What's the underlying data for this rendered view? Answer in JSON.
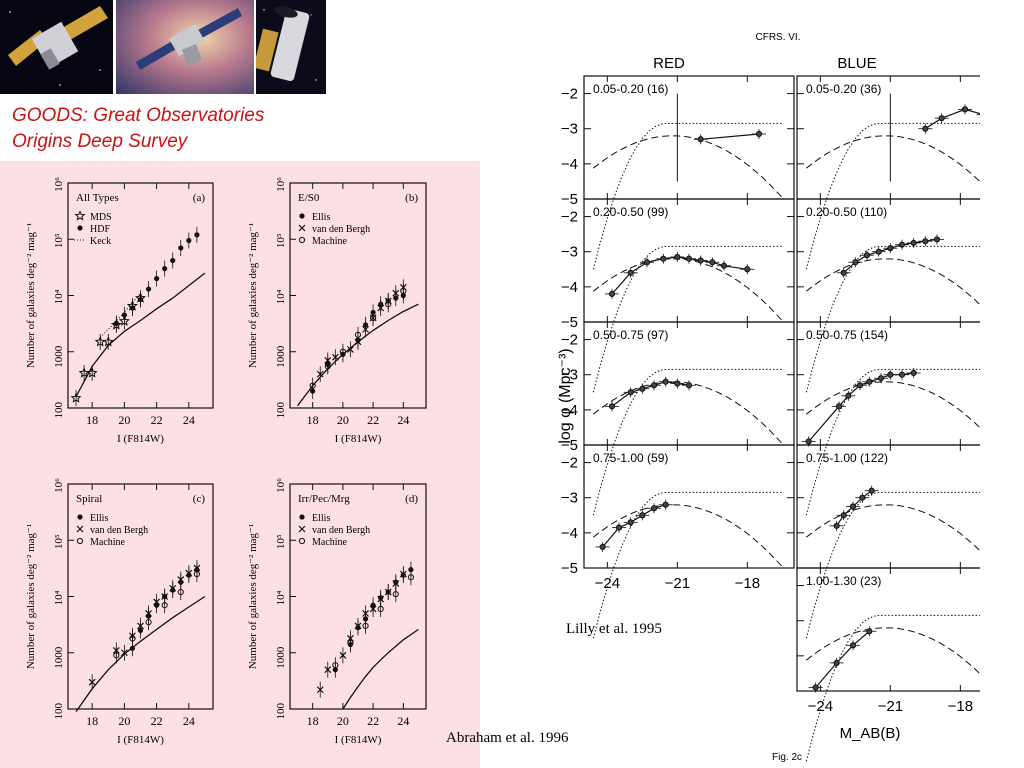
{
  "header": {
    "images": [
      {
        "icon": "chandra-satellite-image"
      },
      {
        "icon": "spitzer-satellite-image"
      },
      {
        "icon": "hubble-telescope-image"
      }
    ],
    "title_line1": "GOODS: Great Observatories",
    "title_line2": "Origins Deep Survey"
  },
  "citations": {
    "abraham": "Abraham et al. 1996",
    "lilly": "Lilly et al. 1995"
  },
  "chart_data": [
    {
      "type": "scatter",
      "source_figure": "number counts",
      "panels": [
        {
          "id": "a",
          "name": "All Types",
          "tag": "(a)",
          "legend": [
            {
              "marker": "star",
              "label": "MDS"
            },
            {
              "marker": "filled-circle",
              "label": "HDF"
            },
            {
              "marker": "dots",
              "label": "Keck"
            }
          ],
          "series": [
            {
              "name": "MDS",
              "marker": "star",
              "x": [
                17.0,
                17.5,
                18.0,
                18.5,
                19.0,
                19.5,
                20.0,
                20.5,
                21.0
              ],
              "y": [
                150,
                420,
                420,
                1500,
                1500,
                3000,
                3500,
                6500,
                9000
              ]
            },
            {
              "name": "HDF",
              "marker": "filled-circle",
              "x": [
                19.5,
                20.0,
                20.5,
                21.0,
                21.5,
                22.0,
                22.5,
                23.0,
                23.5,
                24.0,
                24.5
              ],
              "y": [
                3200,
                4500,
                6000,
                8500,
                13000,
                20000,
                30000,
                42000,
                70000,
                95000,
                120000
              ]
            },
            {
              "name": "Keck",
              "marker": "dots",
              "x": [
                18.5,
                19.0,
                19.5,
                20.0,
                20.5,
                21.0
              ],
              "y": [
                1800,
                2500,
                3500,
                5000,
                7500,
                11000
              ]
            }
          ],
          "curve": {
            "x": [
              17,
              18,
              19,
              20,
              21,
              22,
              23,
              24,
              25
            ],
            "y": [
              160,
              550,
              1300,
              2300,
              3600,
              5800,
              9000,
              15000,
              25000
            ]
          }
        },
        {
          "id": "b",
          "name": "E/S0",
          "tag": "(b)",
          "legend": [
            {
              "marker": "filled-circle",
              "label": "Ellis"
            },
            {
              "marker": "cross",
              "label": "van den Bergh"
            },
            {
              "marker": "open-circle",
              "label": "Machine"
            }
          ],
          "series": [
            {
              "name": "Ellis",
              "marker": "filled-circle",
              "x": [
                18.0,
                19.0,
                20.0,
                21.0,
                21.5,
                22.0,
                22.5,
                23.0,
                23.5,
                24.0
              ],
              "y": [
                200,
                600,
                900,
                1600,
                3000,
                5000,
                7000,
                8000,
                9000,
                10000
              ]
            },
            {
              "name": "van den Bergh",
              "marker": "cross",
              "x": [
                18.5,
                19.0,
                19.5,
                20.5,
                21.0,
                21.5,
                22.0,
                22.5,
                23.0,
                23.5,
                24.0
              ],
              "y": [
                400,
                700,
                800,
                1100,
                1500,
                2500,
                4000,
                6000,
                8000,
                11000,
                14000
              ]
            },
            {
              "name": "Machine",
              "marker": "open-circle",
              "x": [
                18.0,
                19.0,
                20.0,
                21.0,
                22.0,
                23.0,
                24.0
              ],
              "y": [
                250,
                550,
                1000,
                2000,
                4000,
                7000,
                12000
              ]
            }
          ],
          "curve": {
            "x": [
              17,
              18,
              19,
              20,
              21,
              22,
              23,
              24,
              25
            ],
            "y": [
              110,
              250,
              500,
              900,
              1500,
              2400,
              3600,
              5200,
              7000
            ]
          }
        },
        {
          "id": "c",
          "name": "Spiral",
          "tag": "(c)",
          "legend": [
            {
              "marker": "filled-circle",
              "label": "Ellis"
            },
            {
              "marker": "cross",
              "label": "van den Bergh"
            },
            {
              "marker": "open-circle",
              "label": "Machine"
            }
          ],
          "series": [
            {
              "name": "Ellis",
              "marker": "filled-circle",
              "x": [
                20.5,
                21.0,
                21.5,
                22.0,
                22.5,
                23.0,
                23.5,
                24.0,
                24.5
              ],
              "y": [
                1200,
                2500,
                4500,
                7000,
                10000,
                13000,
                18000,
                24000,
                30000
              ]
            },
            {
              "name": "van den Bergh",
              "marker": "cross",
              "x": [
                18.0,
                19.5,
                20.0,
                20.5,
                21.0,
                21.5,
                22.0,
                22.5,
                23.0,
                23.5,
                24.0,
                24.5
              ],
              "y": [
                300,
                1100,
                1000,
                2000,
                3000,
                5000,
                8000,
                10000,
                14000,
                20000,
                26000,
                32000
              ]
            },
            {
              "name": "Machine",
              "marker": "open-circle",
              "x": [
                19.5,
                20.5,
                21.5,
                22.5,
                23.5,
                24.5
              ],
              "y": [
                900,
                1800,
                3500,
                7000,
                12000,
                25000
              ]
            }
          ],
          "curve": {
            "x": [
              17,
              18,
              19,
              20,
              21,
              22,
              23,
              24,
              25
            ],
            "y": [
              90,
              230,
              500,
              950,
              1600,
              2600,
              4200,
              6500,
              10000
            ]
          }
        },
        {
          "id": "d",
          "name": "Irr/Pec/Mrg",
          "tag": "(d)",
          "legend": [
            {
              "marker": "filled-circle",
              "label": "Ellis"
            },
            {
              "marker": "cross",
              "label": "van den Bergh"
            },
            {
              "marker": "open-circle",
              "label": "Machine"
            }
          ],
          "series": [
            {
              "name": "Ellis",
              "marker": "filled-circle",
              "x": [
                19.5,
                20.5,
                21.0,
                21.5,
                22.0,
                22.5,
                23.0,
                23.5,
                24.0,
                24.5
              ],
              "y": [
                500,
                1400,
                2800,
                4000,
                7000,
                9500,
                12000,
                18000,
                24000,
                30000
              ]
            },
            {
              "name": "van den Bergh",
              "marker": "cross",
              "x": [
                18.5,
                19.0,
                20.0,
                20.5,
                21.0,
                21.5,
                22.0,
                22.5,
                23.0,
                23.5,
                24.0
              ],
              "y": [
                220,
                500,
                900,
                1800,
                3000,
                5000,
                6000,
                9000,
                12000,
                17000,
                25000
              ]
            },
            {
              "name": "Machine",
              "marker": "open-circle",
              "x": [
                19.5,
                20.5,
                21.5,
                22.5,
                23.5,
                24.5
              ],
              "y": [
                600,
                1500,
                3000,
                6000,
                11000,
                22000
              ]
            }
          ],
          "curve": {
            "x": [
              20.0,
              20.5,
              21,
              21.5,
              22,
              22.5,
              23,
              23.5,
              24,
              24.5,
              25
            ],
            "y": [
              100,
              160,
              250,
              380,
              550,
              750,
              1000,
              1300,
              1700,
              2100,
              2600
            ]
          }
        }
      ],
      "xlabel": "I (F814W)",
      "ylabel": "Number of galaxies deg⁻² mag⁻¹",
      "xlim": [
        16.5,
        25.5
      ],
      "ylim": [
        100,
        1000000
      ],
      "yscale": "log",
      "xticks": [
        18,
        20,
        22,
        24
      ],
      "yticks": [
        100,
        1000,
        "10⁴",
        "10⁵",
        "10⁶"
      ]
    },
    {
      "type": "line",
      "source_figure": "CFRS VI luminosity functions",
      "figure_header": "CFRS. VI.",
      "column_titles": [
        "RED",
        "BLUE"
      ],
      "xlabel": "M_AB(B)",
      "ylabel": "log φ (Mpc⁻³)",
      "fig_label": "Fig. 2c",
      "xlim": [
        -25,
        -16
      ],
      "ylim": [
        -5,
        -1.5
      ],
      "xticks": [
        -24,
        -21,
        -18
      ],
      "yticks": [
        -2,
        -3,
        -4,
        -5
      ],
      "panels": [
        {
          "col": "RED",
          "row": 0,
          "label": "0.05-0.20 (16)",
          "points": {
            "x": [
              -20.0,
              -17.5
            ],
            "y": [
              -3.3,
              -3.15
            ]
          },
          "cut": -21.0
        },
        {
          "col": "BLUE",
          "row": 0,
          "label": "0.05-0.20 (36)",
          "points": {
            "x": [
              -19.5,
              -18.8,
              -17.8,
              -17.0
            ],
            "y": [
              -3.0,
              -2.7,
              -2.45,
              -2.6
            ]
          },
          "cut": -21.0
        },
        {
          "col": "RED",
          "row": 1,
          "label": "0.20-0.50 (99)",
          "points": {
            "x": [
              -23.8,
              -23.0,
              -22.3,
              -21.6,
              -21.0,
              -20.5,
              -20.0,
              -19.5,
              -19.0,
              -18.0
            ],
            "y": [
              -4.2,
              -3.6,
              -3.3,
              -3.2,
              -3.15,
              -3.2,
              -3.25,
              -3.3,
              -3.4,
              -3.5
            ]
          }
        },
        {
          "col": "BLUE",
          "row": 1,
          "label": "0.20-0.50 (110)",
          "points": {
            "x": [
              -23.0,
              -22.5,
              -22.0,
              -21.5,
              -21.0,
              -20.5,
              -20.0,
              -19.5,
              -19.0
            ],
            "y": [
              -3.6,
              -3.3,
              -3.1,
              -3.0,
              -2.9,
              -2.8,
              -2.75,
              -2.7,
              -2.65
            ]
          }
        },
        {
          "col": "RED",
          "row": 2,
          "label": "0.50-0.75 (97)",
          "points": {
            "x": [
              -23.8,
              -23.0,
              -22.5,
              -22.0,
              -21.5,
              -21.0,
              -20.5
            ],
            "y": [
              -3.9,
              -3.5,
              -3.4,
              -3.3,
              -3.2,
              -3.25,
              -3.3
            ]
          }
        },
        {
          "col": "BLUE",
          "row": 2,
          "label": "0.50-0.75 (154)",
          "points": {
            "x": [
              -24.5,
              -23.2,
              -22.8,
              -22.3,
              -21.9,
              -21.4,
              -21.0,
              -20.5,
              -20.0
            ],
            "y": [
              -4.9,
              -3.9,
              -3.6,
              -3.3,
              -3.2,
              -3.1,
              -3.0,
              -3.0,
              -2.95
            ]
          }
        },
        {
          "col": "RED",
          "row": 3,
          "label": "0.75-1.00 (59)",
          "points": {
            "x": [
              -24.2,
              -23.5,
              -23.0,
              -22.5,
              -22.0,
              -21.5
            ],
            "y": [
              -4.4,
              -3.85,
              -3.7,
              -3.5,
              -3.3,
              -3.2
            ]
          }
        },
        {
          "col": "BLUE",
          "row": 3,
          "label": "0.75-1.00 (122)",
          "points": {
            "x": [
              -23.3,
              -23.0,
              -22.6,
              -22.2,
              -21.8
            ],
            "y": [
              -3.8,
              -3.5,
              -3.25,
              -3.0,
              -2.8
            ]
          }
        },
        {
          "col": "BLUE",
          "row": 4,
          "label": "1.00-1.30 (23)",
          "points": {
            "x": [
              -24.2,
              -23.3,
              -22.6,
              -21.9
            ],
            "y": [
              -4.9,
              -4.2,
              -3.7,
              -3.3
            ]
          }
        }
      ]
    }
  ]
}
